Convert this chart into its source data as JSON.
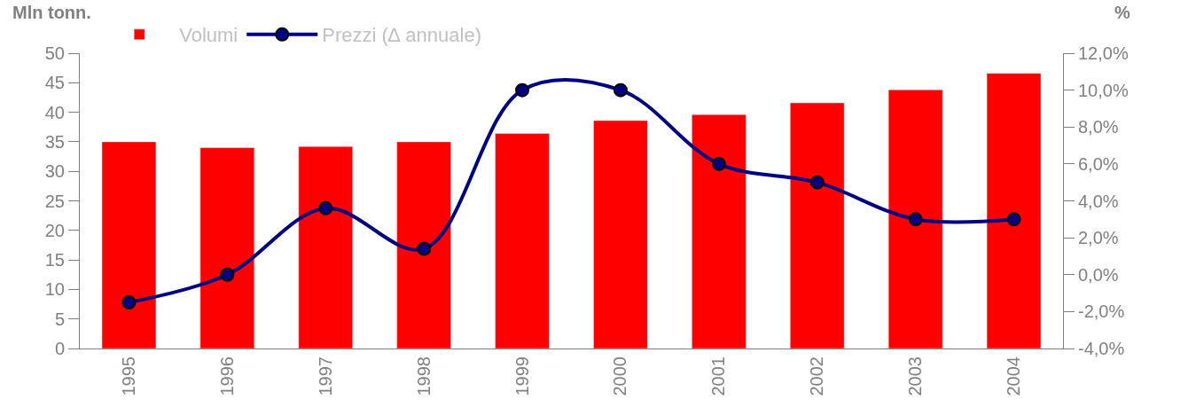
{
  "chart_data": {
    "type": "bar",
    "ylabel": "Mln tonn.",
    "y2label": "%",
    "categories": [
      "1995",
      "1996",
      "1997",
      "1998",
      "1999",
      "2000",
      "2001",
      "2002",
      "2003",
      "2004"
    ],
    "series": [
      {
        "name": "Volumi",
        "color": "#ff0000",
        "values": [
          35,
          34,
          34.2,
          35,
          36.4,
          38.6,
          39.6,
          41.6,
          43.8,
          46.6
        ]
      },
      {
        "name": "Prezzi (∆ annuale)",
        "type": "line",
        "axis": "y2",
        "color": "#000080",
        "marker": "circle",
        "values": [
          -1.5,
          0,
          3.6,
          1.4,
          10,
          10,
          6,
          5,
          3,
          3
        ]
      }
    ],
    "ylim": [
      0,
      50
    ],
    "yticks": [
      0,
      5,
      10,
      15,
      20,
      25,
      30,
      35,
      40,
      45,
      50
    ],
    "y2lim": [
      -4,
      12
    ],
    "y2ticks": [
      {
        "value": -4,
        "label": "-4,0%"
      },
      {
        "value": -2,
        "label": "-2,0%"
      },
      {
        "value": 0,
        "label": "0,0%"
      },
      {
        "value": 2,
        "label": "2,0%"
      },
      {
        "value": 4,
        "label": "4,0%"
      },
      {
        "value": 6,
        "label": "6,0%"
      },
      {
        "value": 8,
        "label": "8,0%"
      },
      {
        "value": 10,
        "label": "10,0%"
      },
      {
        "value": 12,
        "label": "12,0%"
      }
    ],
    "legend": "top"
  }
}
